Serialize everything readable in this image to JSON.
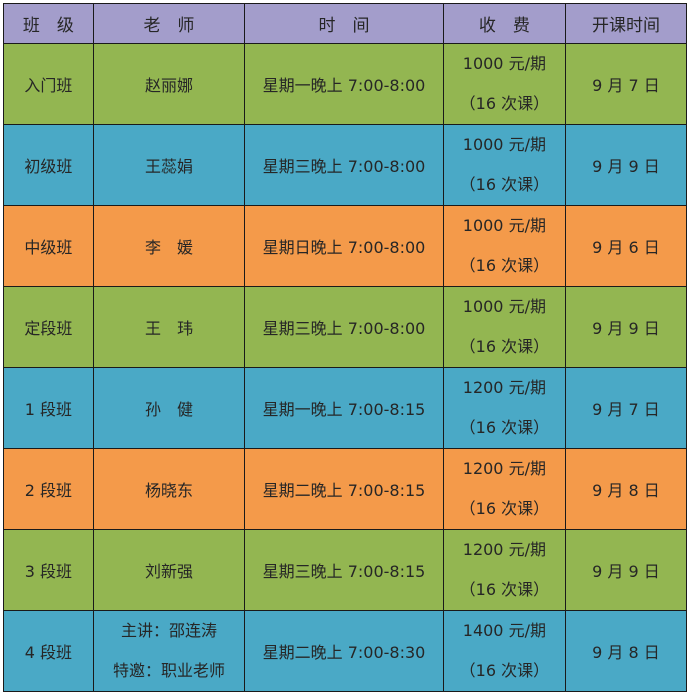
{
  "colors": {
    "header": "#a39dcb",
    "green": "#93b651",
    "blue": "#4aa9c6",
    "orange": "#f49a4a",
    "border": "#1a1a1a",
    "text": "#262626"
  },
  "headers": [
    "班　级",
    "老　师",
    "时　间",
    "收　费",
    "开课时间"
  ],
  "rows": [
    {
      "color": "green",
      "class": "入门班",
      "teacher": [
        "赵丽娜"
      ],
      "time": "星期一晚上 7:00-8:00",
      "fee": "1000 元/期",
      "lessons": "（16 次课）",
      "start": "9 月 7 日"
    },
    {
      "color": "blue",
      "class": "初级班",
      "teacher": [
        "王蕊娟"
      ],
      "time": "星期三晚上 7:00-8:00",
      "fee": "1000 元/期",
      "lessons": "（16 次课）",
      "start": "9 月 9 日"
    },
    {
      "color": "orange",
      "class": "中级班",
      "teacher": [
        "李　媛"
      ],
      "time": "星期日晚上 7:00-8:00",
      "fee": "1000 元/期",
      "lessons": "（16 次课）",
      "start": "9 月 6 日"
    },
    {
      "color": "green",
      "class": "定段班",
      "teacher": [
        "王　玮"
      ],
      "time": "星期三晚上 7:00-8:00",
      "fee": "1000 元/期",
      "lessons": "（16 次课）",
      "start": "9 月 9 日"
    },
    {
      "color": "blue",
      "class": "1 段班",
      "teacher": [
        "孙　健"
      ],
      "time": "星期一晚上 7:00-8:15",
      "fee": "1200 元/期",
      "lessons": "（16 次课）",
      "start": "9 月 7 日"
    },
    {
      "color": "orange",
      "class": "2 段班",
      "teacher": [
        "杨晓东"
      ],
      "time": "星期二晚上 7:00-8:15",
      "fee": "1200 元/期",
      "lessons": "（16 次课）",
      "start": "9 月 8 日"
    },
    {
      "color": "green",
      "class": "3 段班",
      "teacher": [
        "刘新强"
      ],
      "time": "星期三晚上 7:00-8:15",
      "fee": "1200 元/期",
      "lessons": "（16 次课）",
      "start": "9 月 9 日"
    },
    {
      "color": "blue",
      "class": "4 段班",
      "teacher": [
        "主讲：邵连涛",
        "特邀：职业老师"
      ],
      "time": "星期二晚上 7:00-8:30",
      "fee": "1400 元/期",
      "lessons": "（16 次课）",
      "start": "9 月 8 日"
    }
  ]
}
